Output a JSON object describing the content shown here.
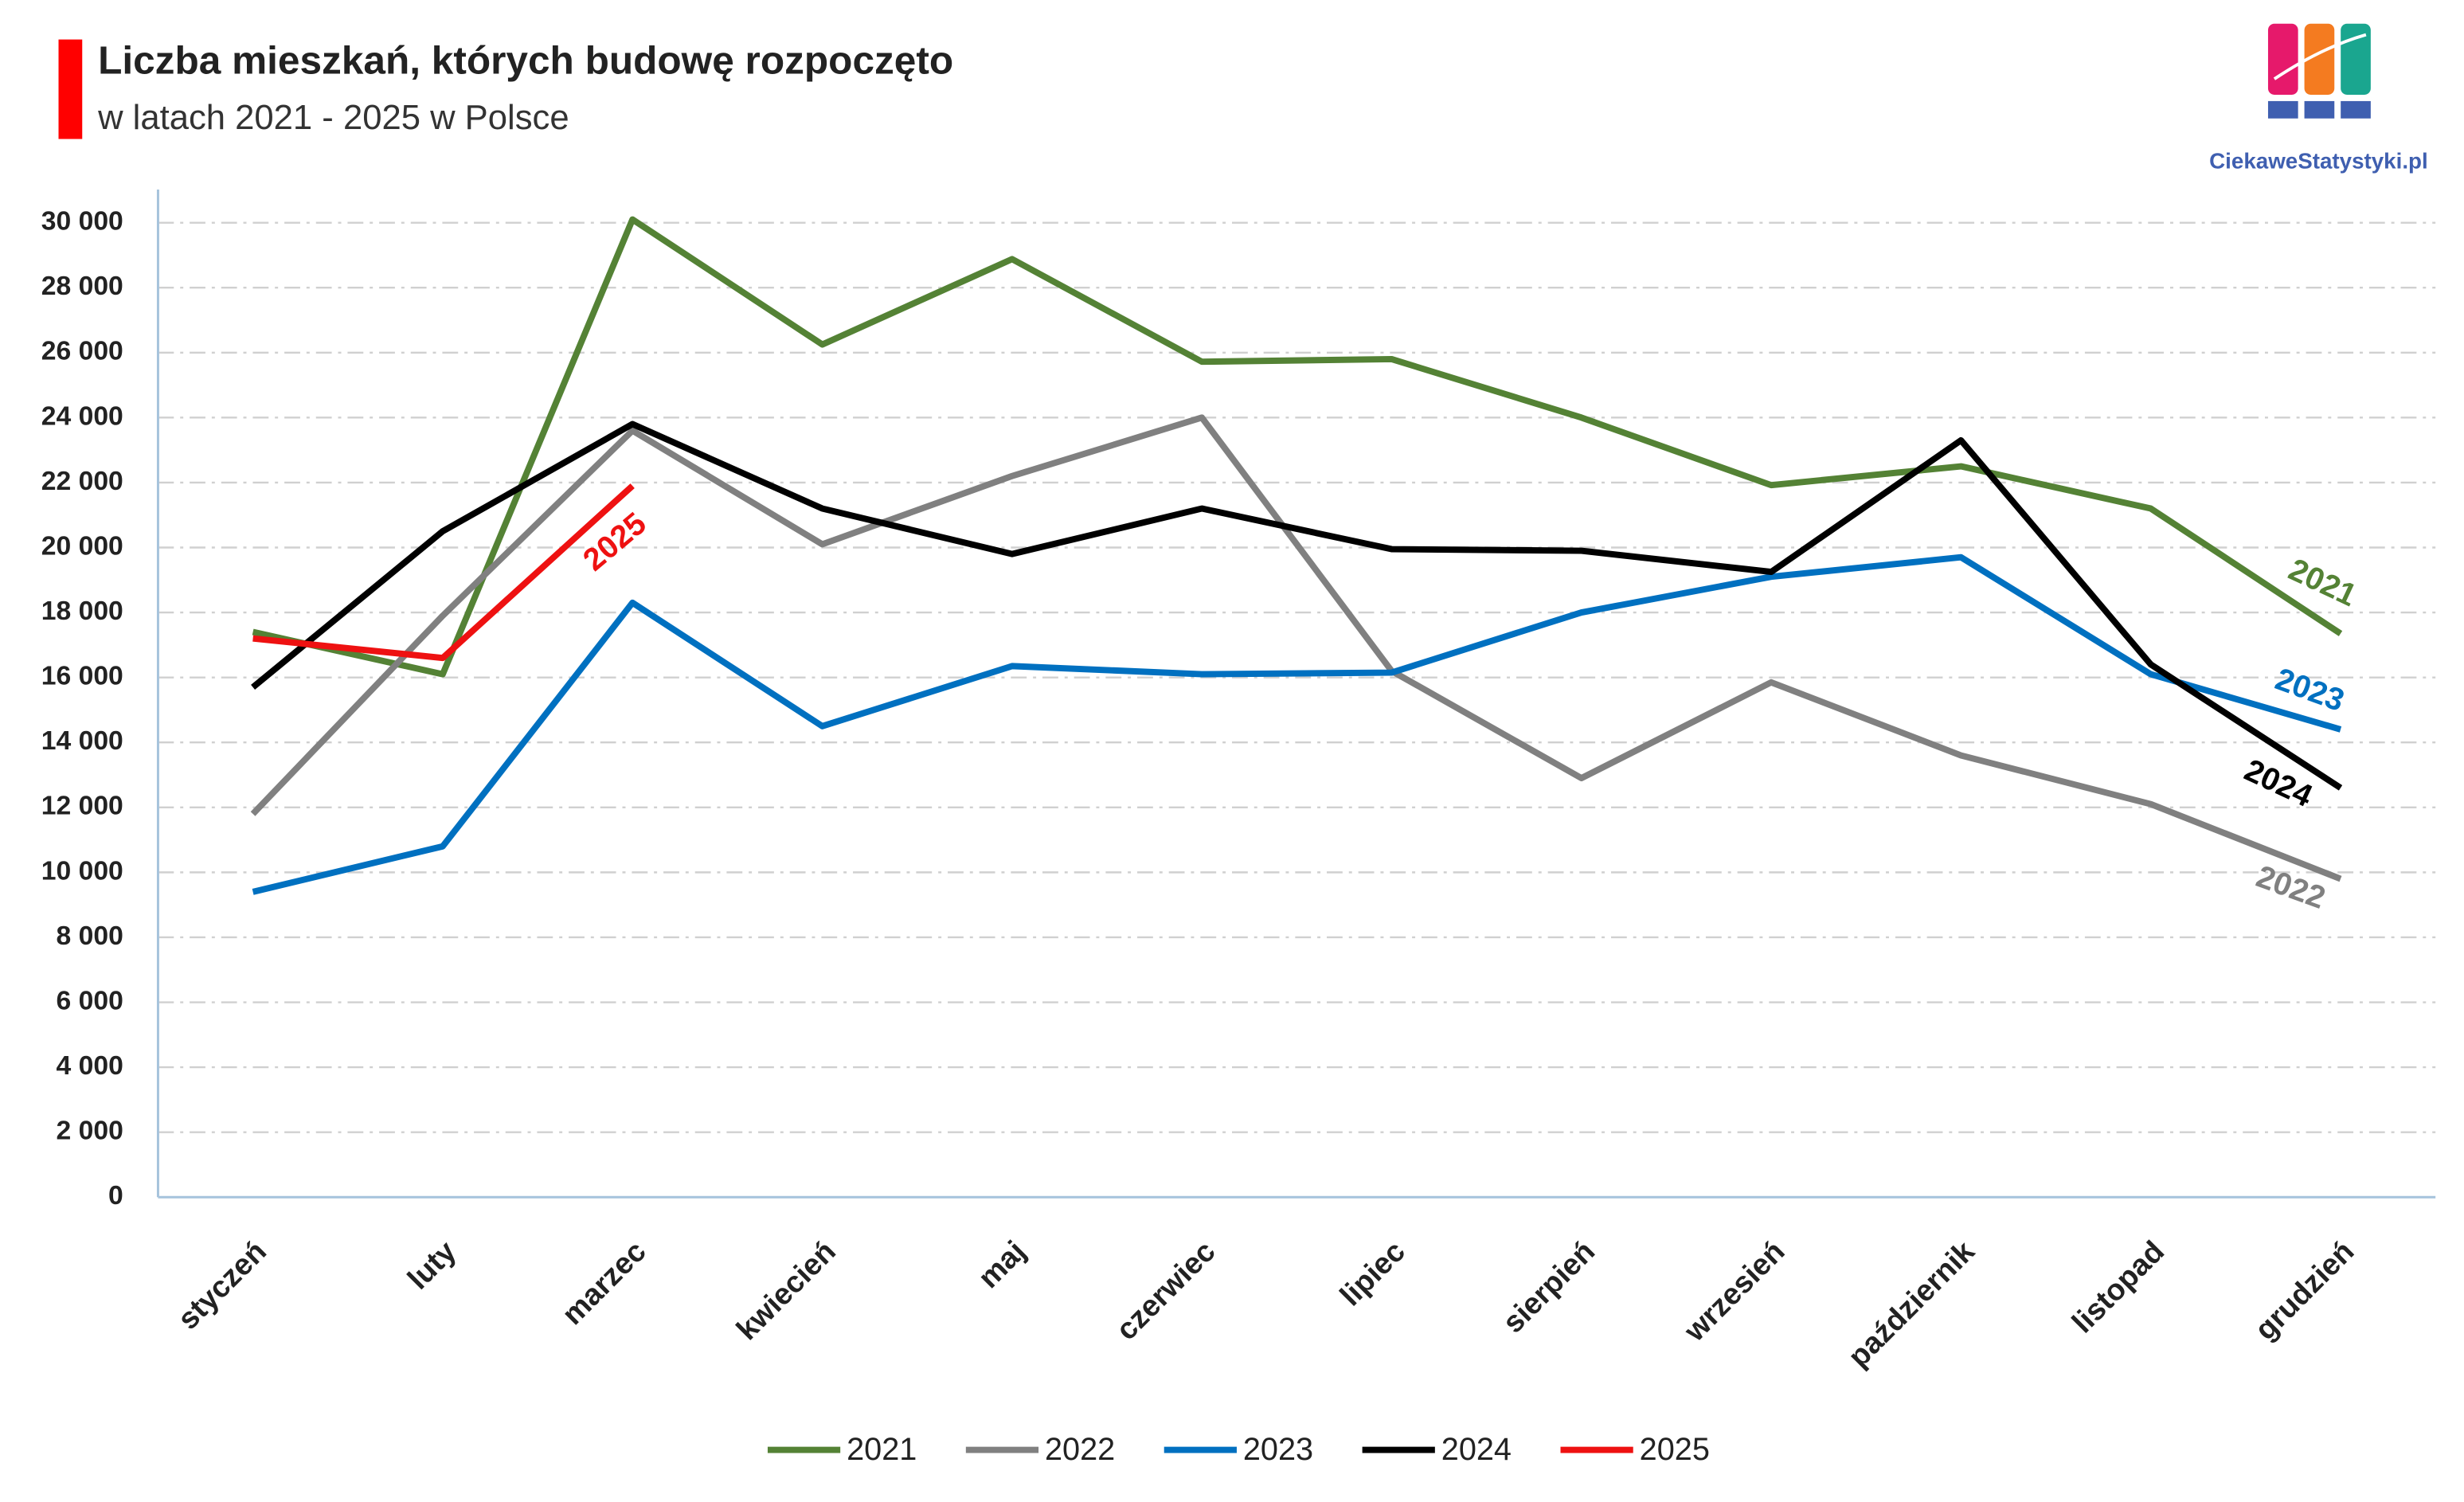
{
  "chart_data": {
    "type": "line",
    "title": "Liczba mieszkań, których budowę rozpoczęto",
    "subtitle": "w latach 2021 - 2025 w Polsce",
    "logo": "CiekaweStatystyki.pl",
    "categories": [
      "styczeń",
      "luty",
      "marzec",
      "kwiecień",
      "maj",
      "czerwiec",
      "lipiec",
      "sierpień",
      "wrzesień",
      "październik",
      "listopad",
      "grudzień"
    ],
    "series": [
      {
        "name": "2021",
        "color": "#548235",
        "values": [
          17400,
          16100,
          30100,
          26250,
          28880,
          25720,
          25800,
          24000,
          21920,
          22500,
          21200,
          17350
        ]
      },
      {
        "name": "2022",
        "color": "#808080",
        "values": [
          11800,
          17900,
          23600,
          20100,
          22200,
          24000,
          16200,
          12900,
          15850,
          13600,
          12100,
          9800
        ]
      },
      {
        "name": "2023",
        "color": "#0070c0",
        "values": [
          9400,
          10800,
          18300,
          14500,
          16350,
          16100,
          16150,
          18000,
          19100,
          19700,
          16100,
          14400
        ]
      },
      {
        "name": "2024",
        "color": "#000000",
        "values": [
          15700,
          20500,
          23800,
          21200,
          19800,
          21200,
          19950,
          19900,
          19250,
          23300,
          16400,
          12600
        ]
      },
      {
        "name": "2025",
        "color": "#ee1111",
        "values": [
          17200,
          16600,
          21900,
          null,
          null,
          null,
          null,
          null,
          null,
          null,
          null,
          null
        ]
      }
    ],
    "ylim": [
      0,
      30000
    ],
    "yticks": [
      0,
      {
        "value": 2000,
        "label": "2 000"
      },
      {
        "value": 4000,
        "label": "4 000"
      },
      {
        "value": 6000,
        "label": "6 000"
      },
      {
        "value": 8000,
        "label": "8 000"
      },
      {
        "value": 10000,
        "label": "10 000"
      },
      {
        "value": 12000,
        "label": "12 000"
      },
      {
        "value": 14000,
        "label": "14 000"
      },
      {
        "value": 16000,
        "label": "16 000"
      },
      {
        "value": 18000,
        "label": "18 000"
      },
      {
        "value": 20000,
        "label": "20 000"
      },
      {
        "value": 22000,
        "label": "22 000"
      },
      {
        "value": 24000,
        "label": "24 000"
      },
      {
        "value": 26000,
        "label": "26 000"
      },
      {
        "value": 28000,
        "label": "28 000"
      },
      {
        "value": 30000,
        "label": "30 000"
      }
    ],
    "grid": true,
    "legend": "bottom"
  }
}
